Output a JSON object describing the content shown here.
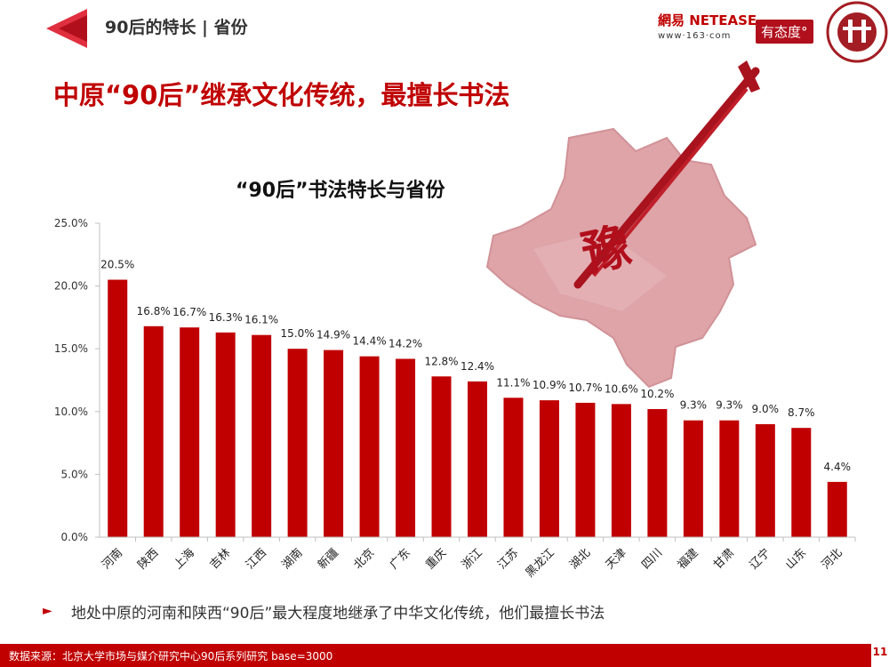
{
  "header": {
    "section_label": "90后的特长 | 省份",
    "logo_text": "網易 NETEASE",
    "logo_sub": "www·163·com",
    "badge": "有态度°"
  },
  "headline": "中原“90后”继承文化传统，最擅长书法",
  "map_character": "豫",
  "bullet": "地处中原的河南和陕西“90后”最大程度地继承了中华文化传统，他们最擅长书法",
  "footer": {
    "source": "数据来源：北京大学市场与媒介研究中心90后系列研究 base=3000",
    "page_number": "11"
  },
  "colors": {
    "accent": "#c00000",
    "bar": "#c00000"
  },
  "chart_data": {
    "type": "bar",
    "title": "“90后”书法特长与省份",
    "categories": [
      "河南",
      "陕西",
      "上海",
      "吉林",
      "江西",
      "湖南",
      "新疆",
      "北京",
      "广东",
      "重庆",
      "浙江",
      "江苏",
      "黑龙江",
      "湖北",
      "天津",
      "四川",
      "福建",
      "甘肃",
      "辽宁",
      "山东",
      "河北"
    ],
    "values": [
      20.5,
      16.8,
      16.7,
      16.3,
      16.1,
      15.0,
      14.9,
      14.4,
      14.2,
      12.8,
      12.4,
      11.1,
      10.9,
      10.7,
      10.6,
      10.2,
      9.3,
      9.3,
      9.0,
      8.7,
      4.4
    ],
    "data_labels": [
      "20.5%",
      "16.8%",
      "16.7%",
      "16.3%",
      "16.1%",
      "15.0%",
      "14.9%",
      "14.4%",
      "14.2%",
      "12.8%",
      "12.4%",
      "11.1%",
      "10.9%",
      "10.7%",
      "10.6%",
      "10.2%",
      "9.3%",
      "9.3%",
      "9.0%",
      "8.7%",
      "4.4%"
    ],
    "ylim": [
      0,
      25
    ],
    "yticks": [
      "0.0%",
      "5.0%",
      "10.0%",
      "15.0%",
      "20.0%",
      "25.0%"
    ],
    "grid": false
  }
}
